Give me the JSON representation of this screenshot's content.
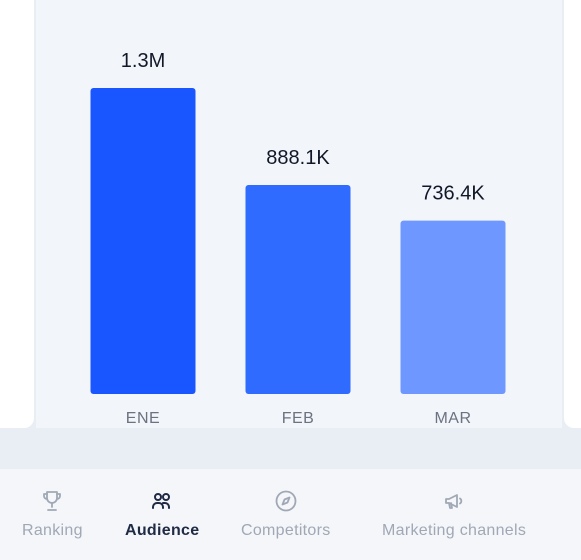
{
  "chart_data": {
    "type": "bar",
    "categories": [
      "ENE",
      "FEB",
      "MAR"
    ],
    "values": [
      1300000,
      888100,
      736400
    ],
    "value_labels": [
      "1.3M",
      "888.1K",
      "736.4K"
    ],
    "bar_colors": [
      "#1a56ff",
      "#2f6bff",
      "#6e97ff"
    ],
    "title": "",
    "xlabel": "",
    "ylabel": "",
    "grid": false
  },
  "nav": {
    "items": [
      {
        "label": "Ranking",
        "icon": "trophy-icon",
        "active": false
      },
      {
        "label": "Audience",
        "icon": "users-icon",
        "active": true
      },
      {
        "label": "Competitors",
        "icon": "compass-icon",
        "active": false
      },
      {
        "label": "Marketing channels",
        "icon": "megaphone-icon",
        "active": false
      }
    ]
  },
  "colors": {
    "nav_active": "#1f2a44",
    "nav_inactive": "#a0a8b5",
    "background": "#e9eef5"
  }
}
